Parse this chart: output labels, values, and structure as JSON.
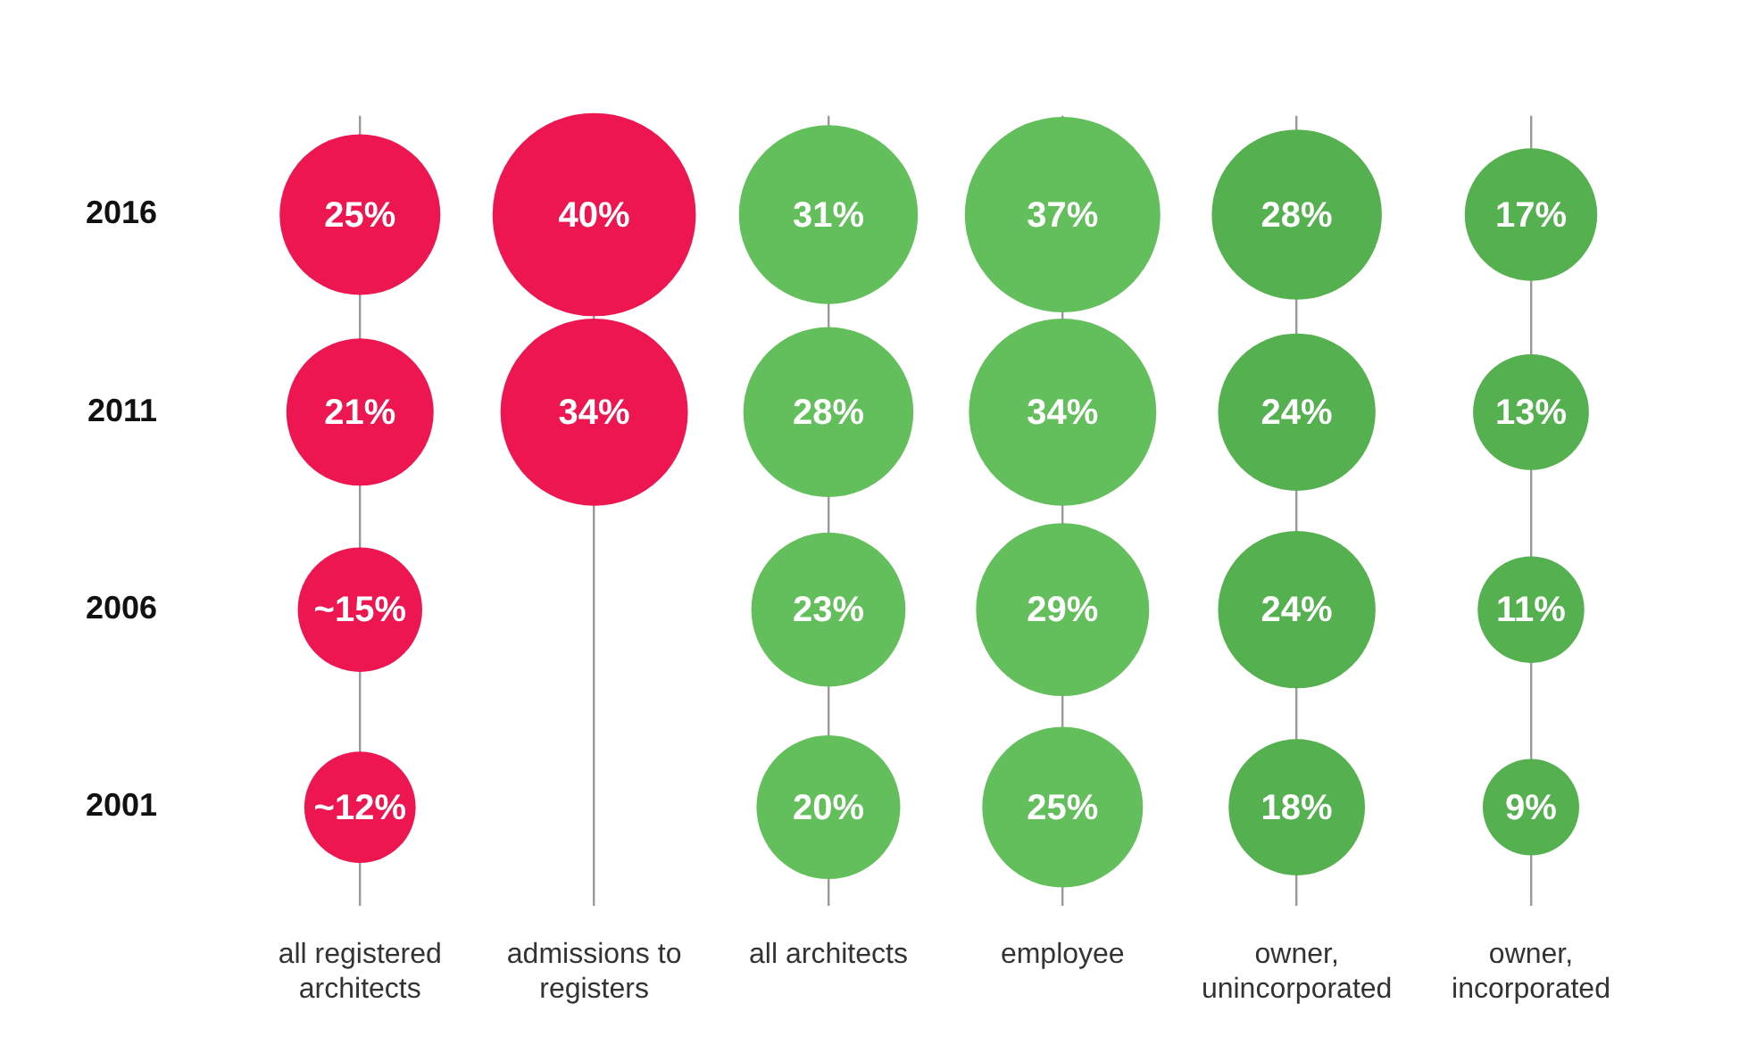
{
  "chart_data": {
    "type": "bubble",
    "categories": [
      "all registered architects",
      "admissions to registers",
      "all architects",
      "employee",
      "owner, unincorporated",
      "owner, incorporated"
    ],
    "ylim": [
      1998.5,
      2018.5
    ],
    "yticks": [
      2001,
      2006,
      2011,
      2016
    ],
    "grid": "x",
    "legend": false,
    "series": [
      {
        "color": "#ee1651",
        "x": [
          "all registered architects",
          "all registered architects",
          "all registered architects",
          "all registered architects"
        ],
        "values": [
          2016,
          2011,
          2006,
          2001
        ],
        "sizes": [
          25,
          21,
          15,
          12
        ],
        "value_labels": [
          "25%",
          "21%",
          "~15%",
          "~12%"
        ]
      },
      {
        "color": "#ee1651",
        "x": [
          "admissions to registers",
          "admissions to registers"
        ],
        "values": [
          2016,
          2011
        ],
        "sizes": [
          40,
          34
        ],
        "value_labels": [
          "40%",
          "34%"
        ]
      },
      {
        "color": "#62bf5b",
        "x": [
          "all architects",
          "all architects",
          "all architects",
          "all architects"
        ],
        "values": [
          2016,
          2011,
          2006,
          2001
        ],
        "sizes": [
          31,
          28,
          23,
          20
        ],
        "value_labels": [
          "31%",
          "28%",
          "23%",
          "20%"
        ]
      },
      {
        "color": "#62bf5b",
        "x": [
          "employee",
          "employee",
          "employee",
          "employee"
        ],
        "values": [
          2016,
          2011,
          2006,
          2001
        ],
        "sizes": [
          37,
          34,
          29,
          25
        ],
        "value_labels": [
          "37%",
          "34%",
          "29%",
          "25%"
        ]
      },
      {
        "color": "#55b04f",
        "x": [
          "owner, unincorporated",
          "owner, unincorporated",
          "owner, unincorporated",
          "owner, unincorporated"
        ],
        "values": [
          2016,
          2011,
          2006,
          2001
        ],
        "sizes": [
          28,
          24,
          24,
          18
        ],
        "value_labels": [
          "28%",
          "24%",
          "24%",
          "18%"
        ]
      },
      {
        "color": "#55b04f",
        "x": [
          "owner, incorporated",
          "owner, incorporated",
          "owner, incorporated",
          "owner, incorporated"
        ],
        "values": [
          2016,
          2011,
          2006,
          2001
        ],
        "sizes": [
          17,
          13,
          11,
          9
        ],
        "value_labels": [
          "17%",
          "13%",
          "11%",
          "9%"
        ]
      }
    ]
  }
}
